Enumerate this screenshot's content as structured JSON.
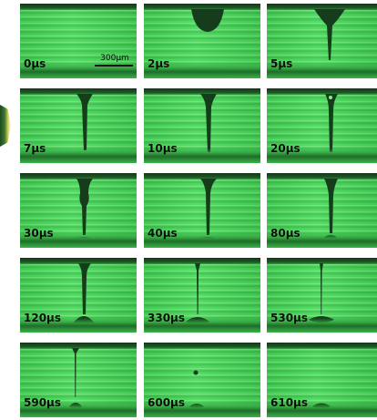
{
  "figure": {
    "panels": [
      {
        "time_label": "0µs"
      },
      {
        "time_label": "2µs"
      },
      {
        "time_label": "5µs"
      },
      {
        "time_label": "7µs"
      },
      {
        "time_label": "10µs"
      },
      {
        "time_label": "20µs"
      },
      {
        "time_label": "30µs"
      },
      {
        "time_label": "40µs"
      },
      {
        "time_label": "80µs"
      },
      {
        "time_label": "120µs"
      },
      {
        "time_label": "330µs"
      },
      {
        "time_label": "530µs"
      },
      {
        "time_label": "590µs"
      },
      {
        "time_label": "600µs"
      },
      {
        "time_label": "610µs"
      }
    ],
    "scale_bar_label": "300µm",
    "colors": {
      "background": "#47d85a",
      "fluid": "#163d1b",
      "edge_dark": "#14371a"
    }
  }
}
